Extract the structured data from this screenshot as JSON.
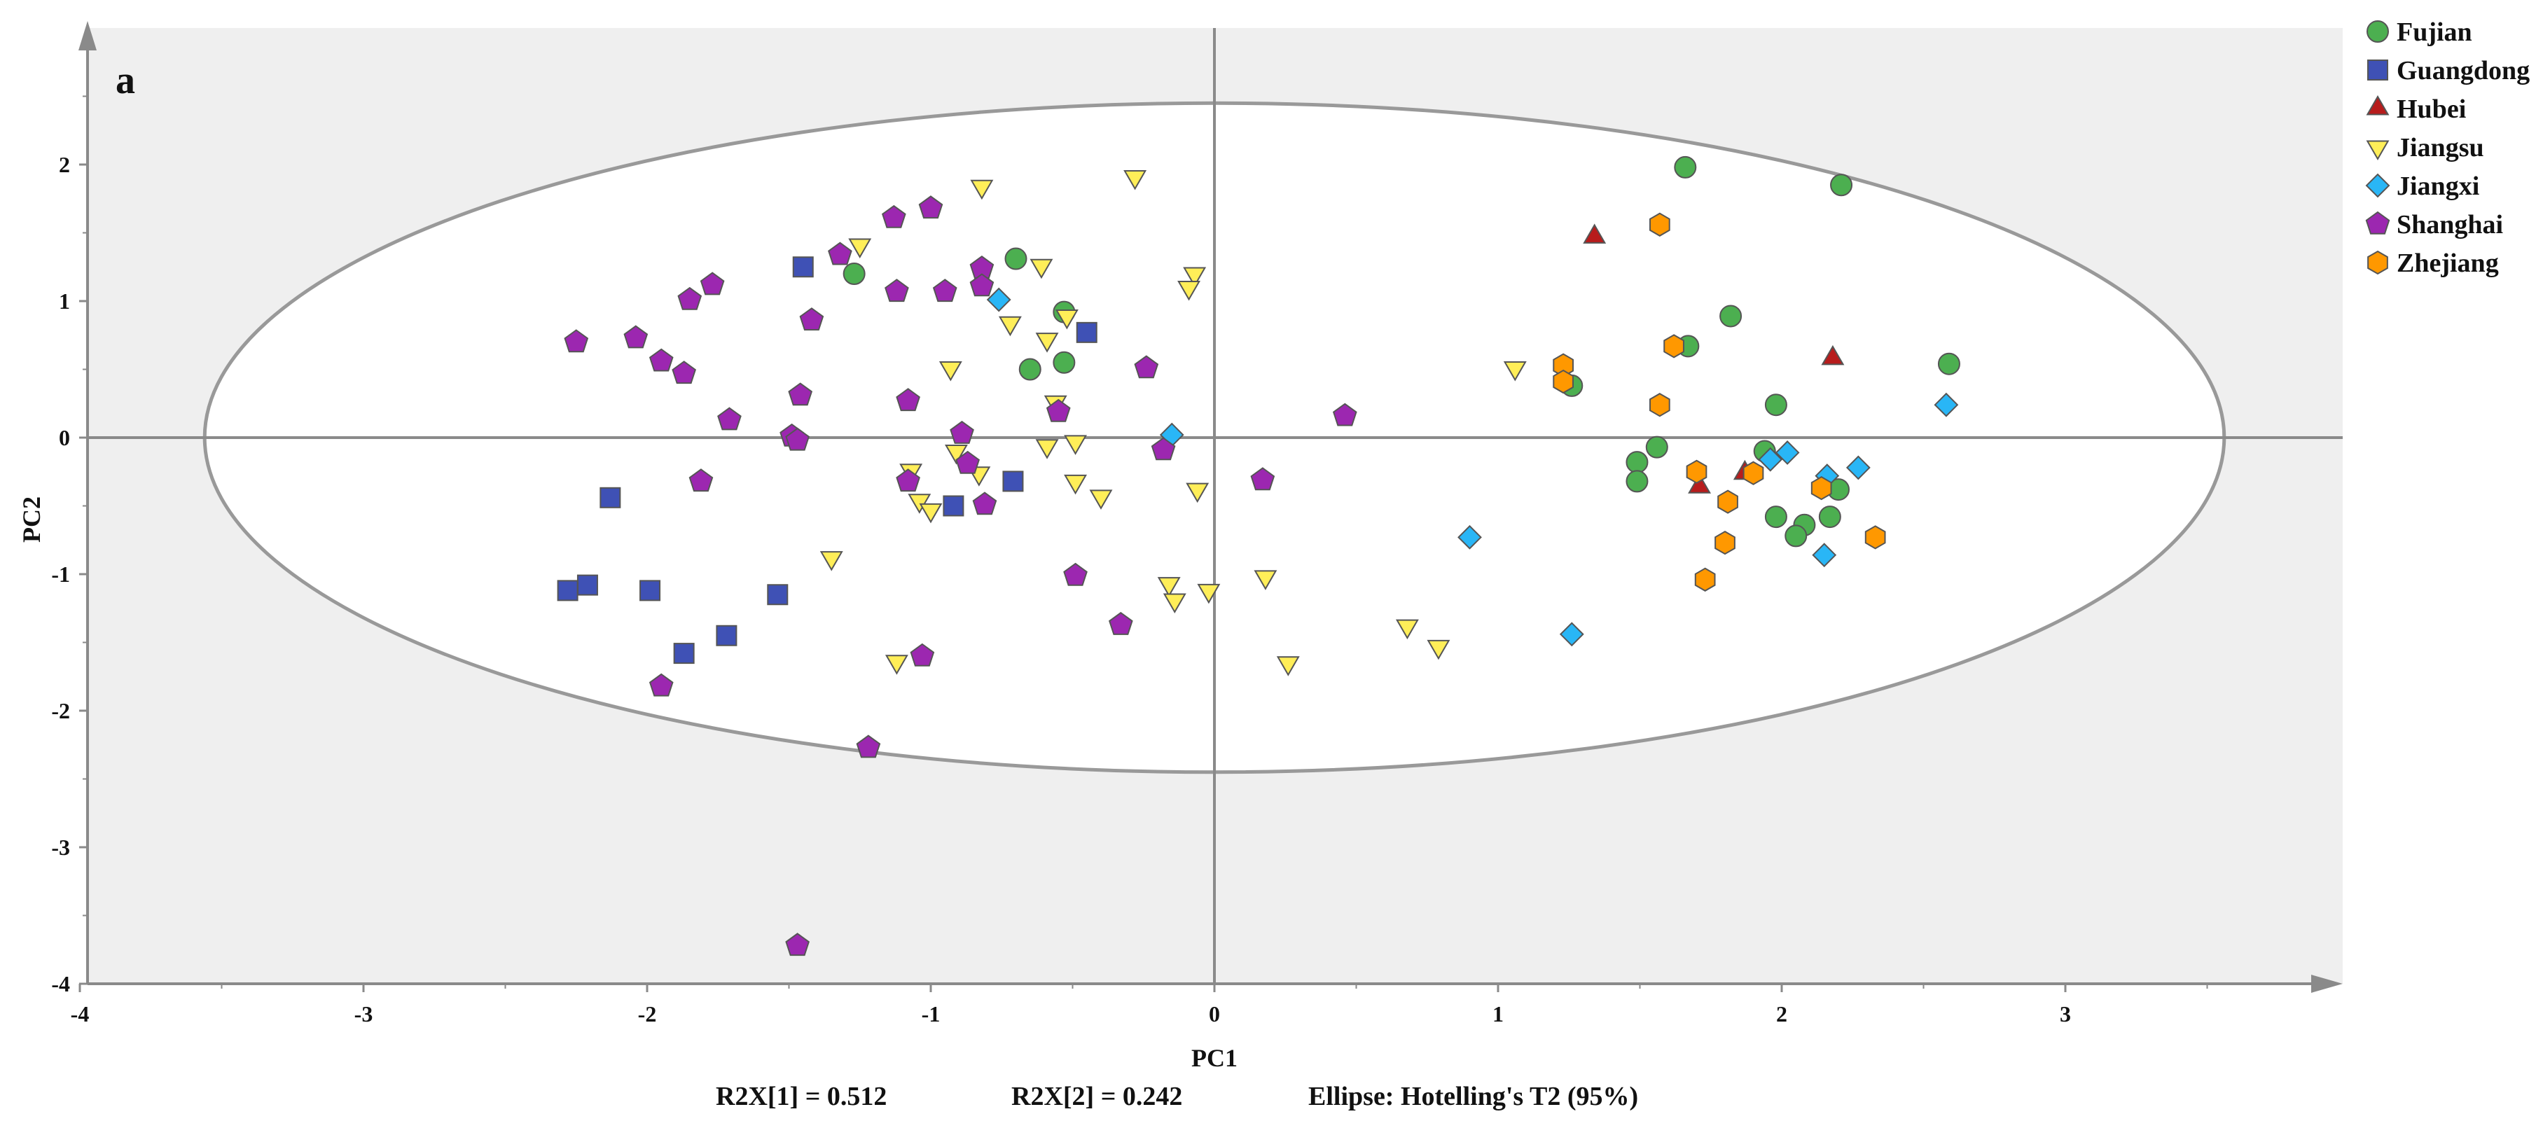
{
  "chart_data": {
    "type": "scatter",
    "panel_label": "a",
    "xlabel": "PC1",
    "ylabel": "PC2",
    "xlim": [
      -4,
      4
    ],
    "ylim": [
      -4,
      3
    ],
    "x_ticks": [
      -4,
      -3,
      -2,
      -1,
      0,
      1,
      2,
      3
    ],
    "y_ticks": [
      2,
      1,
      0,
      -1,
      -2,
      -3,
      -4
    ],
    "footer": {
      "r2x1": "R2X[1] = 0.512",
      "r2x2": "R2X[2] = 0.242",
      "ellipse": "Ellipse: Hotelling's T2 (95%)"
    },
    "ellipse": {
      "cx": 0,
      "cy": 0,
      "rx": 3.56,
      "ry": 2.45
    },
    "legend_position": "top-right",
    "series": [
      {
        "name": "Fujian",
        "marker": "circle",
        "color": "#4caf50",
        "points": [
          [
            1.66,
            1.98
          ],
          [
            2.21,
            1.85
          ],
          [
            -0.7,
            1.31
          ],
          [
            -1.27,
            1.2
          ],
          [
            -0.53,
            0.92
          ],
          [
            1.82,
            0.89
          ],
          [
            1.67,
            0.67
          ],
          [
            -0.53,
            0.55
          ],
          [
            -0.65,
            0.5
          ],
          [
            2.59,
            0.54
          ],
          [
            1.26,
            0.38
          ],
          [
            1.98,
            0.24
          ],
          [
            1.56,
            -0.07
          ],
          [
            1.49,
            -0.18
          ],
          [
            1.49,
            -0.32
          ],
          [
            1.94,
            -0.1
          ],
          [
            1.98,
            -0.58
          ],
          [
            2.2,
            -0.38
          ],
          [
            2.08,
            -0.64
          ],
          [
            2.05,
            -0.72
          ],
          [
            2.17,
            -0.58
          ]
        ]
      },
      {
        "name": "Guangdong",
        "marker": "square",
        "color": "#3f51b5",
        "points": [
          [
            -1.45,
            1.25
          ],
          [
            -0.45,
            0.77
          ],
          [
            -2.13,
            -0.44
          ],
          [
            -0.71,
            -0.32
          ],
          [
            -0.92,
            -0.5
          ],
          [
            -2.21,
            -1.08
          ],
          [
            -2.28,
            -1.12
          ],
          [
            -1.99,
            -1.12
          ],
          [
            -1.54,
            -1.15
          ],
          [
            -1.72,
            -1.45
          ],
          [
            -1.87,
            -1.58
          ]
        ]
      },
      {
        "name": "Hubei",
        "marker": "triangle-up",
        "color": "#b71c1c",
        "points": [
          [
            1.34,
            1.47
          ],
          [
            2.18,
            0.58
          ],
          [
            1.87,
            -0.26
          ],
          [
            1.71,
            -0.36
          ]
        ]
      },
      {
        "name": "Jiangsu",
        "marker": "triangle-down",
        "color": "#ffee58",
        "points": [
          [
            -0.28,
            1.91
          ],
          [
            -0.82,
            1.84
          ],
          [
            -1.25,
            1.41
          ],
          [
            -0.61,
            1.26
          ],
          [
            -0.07,
            1.2
          ],
          [
            -0.09,
            1.1
          ],
          [
            -0.52,
            0.89
          ],
          [
            -0.72,
            0.84
          ],
          [
            -0.59,
            0.72
          ],
          [
            -0.93,
            0.51
          ],
          [
            1.06,
            0.51
          ],
          [
            -0.56,
            0.26
          ],
          [
            -0.59,
            -0.06
          ],
          [
            -0.49,
            -0.03
          ],
          [
            -0.91,
            -0.1
          ],
          [
            -0.83,
            -0.26
          ],
          [
            -1.07,
            -0.24
          ],
          [
            -0.49,
            -0.32
          ],
          [
            -0.4,
            -0.43
          ],
          [
            -0.06,
            -0.38
          ],
          [
            -1.04,
            -0.46
          ],
          [
            -1.0,
            -0.53
          ],
          [
            -1.35,
            -0.88
          ],
          [
            -0.16,
            -1.07
          ],
          [
            0.18,
            -1.02
          ],
          [
            -0.02,
            -1.12
          ],
          [
            -0.14,
            -1.19
          ],
          [
            0.68,
            -1.38
          ],
          [
            0.79,
            -1.53
          ],
          [
            -1.12,
            -1.64
          ],
          [
            0.26,
            -1.65
          ]
        ]
      },
      {
        "name": "Jiangxi",
        "marker": "diamond",
        "color": "#29b6f6",
        "points": [
          [
            -0.76,
            1.01
          ],
          [
            -0.15,
            0.02
          ],
          [
            2.58,
            0.24
          ],
          [
            2.02,
            -0.11
          ],
          [
            1.96,
            -0.16
          ],
          [
            2.27,
            -0.22
          ],
          [
            2.16,
            -0.28
          ],
          [
            0.9,
            -0.73
          ],
          [
            2.15,
            -0.86
          ],
          [
            1.26,
            -1.44
          ]
        ]
      },
      {
        "name": "Shanghai",
        "marker": "pentagon",
        "color": "#9c27b0",
        "points": [
          [
            -1.0,
            1.68
          ],
          [
            -1.13,
            1.61
          ],
          [
            -1.32,
            1.34
          ],
          [
            -0.82,
            1.24
          ],
          [
            -0.82,
            1.11
          ],
          [
            -1.77,
            1.12
          ],
          [
            -1.85,
            1.01
          ],
          [
            -1.12,
            1.07
          ],
          [
            -0.95,
            1.07
          ],
          [
            -1.42,
            0.86
          ],
          [
            -2.25,
            0.7
          ],
          [
            -2.04,
            0.73
          ],
          [
            -1.95,
            0.56
          ],
          [
            -1.87,
            0.47
          ],
          [
            -0.24,
            0.51
          ],
          [
            -1.46,
            0.31
          ],
          [
            -1.08,
            0.27
          ],
          [
            -0.55,
            0.19
          ],
          [
            -1.71,
            0.13
          ],
          [
            0.46,
            0.16
          ],
          [
            -1.49,
            0.01
          ],
          [
            -1.47,
            -0.02
          ],
          [
            -0.89,
            0.03
          ],
          [
            -0.18,
            -0.09
          ],
          [
            -1.81,
            -0.32
          ],
          [
            -1.08,
            -0.32
          ],
          [
            -0.87,
            -0.19
          ],
          [
            0.17,
            -0.31
          ],
          [
            -0.81,
            -0.49
          ],
          [
            -0.49,
            -1.01
          ],
          [
            -0.33,
            -1.37
          ],
          [
            -1.03,
            -1.6
          ],
          [
            -1.95,
            -1.82
          ],
          [
            -1.22,
            -2.27
          ],
          [
            -1.47,
            -3.72
          ]
        ]
      },
      {
        "name": "Zhejiang",
        "marker": "hexagon",
        "color": "#ff9800",
        "points": [
          [
            1.57,
            1.56
          ],
          [
            1.62,
            0.67
          ],
          [
            1.23,
            0.53
          ],
          [
            1.23,
            0.41
          ],
          [
            1.57,
            0.24
          ],
          [
            1.7,
            -0.25
          ],
          [
            1.9,
            -0.26
          ],
          [
            2.14,
            -0.37
          ],
          [
            1.81,
            -0.47
          ],
          [
            2.33,
            -0.73
          ],
          [
            1.8,
            -0.77
          ],
          [
            1.73,
            -1.04
          ]
        ]
      }
    ]
  }
}
